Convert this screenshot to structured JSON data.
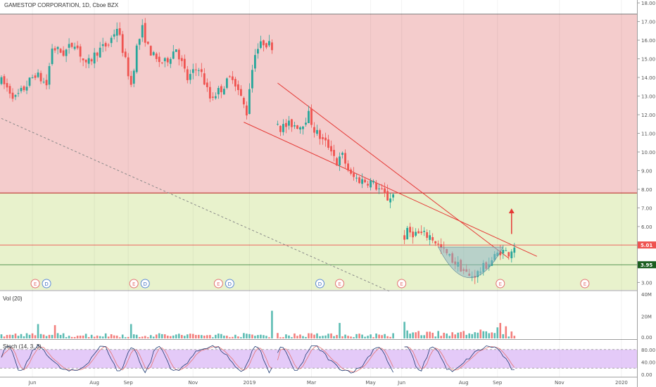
{
  "header": {
    "title": "GAMESTOP CORPORATION, 1D, Cboe BZX"
  },
  "panes": {
    "volume_label": "Vol (20)",
    "stoch_label": "Stoch (14, 3, 3)"
  },
  "colors": {
    "up": "#26a69a",
    "down": "#ef5350",
    "red_zone": "#f4cccc",
    "green_zone": "#e8f2cc",
    "trendline": "#e53935",
    "stoch_band": "#d9b3f5",
    "last_price_badge": "#ef5350",
    "support_badge": "#1b5e20"
  },
  "chart_data": [
    {
      "type": "candlestick",
      "title": "GAMESTOP CORPORATION, 1D, Cboe BZX",
      "ylim": [
        2.6,
        18.0
      ],
      "y_ticks": [
        "18.00",
        "17.00",
        "16.00",
        "15.00",
        "14.00",
        "13.00",
        "12.00",
        "11.00",
        "10.00",
        "9.00",
        "8.00",
        "7.00",
        "6.00",
        "5.00",
        "4.00",
        "3.00"
      ],
      "x_ticks": [
        "Jun",
        "Aug",
        "Sep",
        "Nov",
        "2019",
        "Mar",
        "May",
        "Jun",
        "Aug",
        "Sep",
        "Nov",
        "2020"
      ],
      "x_tick_index": [
        11,
        33,
        45,
        68,
        88,
        110,
        131,
        142,
        164,
        176,
        198,
        220
      ],
      "price_labels": [
        {
          "text": "5.01",
          "value": 5.01,
          "color": "#ef5350"
        },
        {
          "text": "3.95",
          "value": 3.95,
          "color": "#1b5e20"
        }
      ],
      "zones": [
        {
          "name": "red",
          "from": 7.8,
          "to": 17.4
        },
        {
          "name": "green",
          "from": 2.6,
          "to": 7.8
        }
      ],
      "horizontal_lines": [
        5.01,
        3.95
      ],
      "trendlines": [
        {
          "from": [
            98,
            13.7
          ],
          "to": [
            180,
            4.3
          ]
        },
        {
          "from": [
            86,
            11.6
          ],
          "to": [
            190,
            4.4
          ]
        },
        {
          "from": [
            0,
            11.8
          ],
          "to": [
            138,
            2.5
          ],
          "style": "dashed"
        }
      ],
      "arrow": {
        "x": 181,
        "from": 5.6,
        "to": 6.9
      },
      "events": [
        {
          "x": 12,
          "label": "E",
          "kind": "earnings"
        },
        {
          "x": 16,
          "label": "D",
          "kind": "dividend"
        },
        {
          "x": 47,
          "label": "E",
          "kind": "earnings"
        },
        {
          "x": 51,
          "label": "D",
          "kind": "dividend"
        },
        {
          "x": 77,
          "label": "E",
          "kind": "earnings"
        },
        {
          "x": 81,
          "label": "D",
          "kind": "dividend"
        },
        {
          "x": 113,
          "label": "D",
          "kind": "dividend"
        },
        {
          "x": 120,
          "label": "E",
          "kind": "earnings"
        },
        {
          "x": 142,
          "label": "E",
          "kind": "earnings"
        },
        {
          "x": 177,
          "label": "E",
          "kind": "earnings"
        },
        {
          "x": 207,
          "label": "E",
          "kind": "earnings"
        }
      ],
      "anchors": [
        [
          0,
          13.8
        ],
        [
          5,
          12.9
        ],
        [
          8,
          13.4
        ],
        [
          12,
          14.2
        ],
        [
          16,
          13.6
        ],
        [
          18,
          15.6
        ],
        [
          22,
          15.3
        ],
        [
          26,
          15.9
        ],
        [
          30,
          14.6
        ],
        [
          34,
          15.4
        ],
        [
          38,
          15.8
        ],
        [
          41,
          16.7
        ],
        [
          43,
          15.5
        ],
        [
          46,
          13.6
        ],
        [
          48,
          15.6
        ],
        [
          50,
          16.6
        ],
        [
          52,
          15.6
        ],
        [
          55,
          14.9
        ],
        [
          58,
          14.8
        ],
        [
          62,
          15.6
        ],
        [
          66,
          13.9
        ],
        [
          70,
          14.6
        ],
        [
          74,
          12.9
        ],
        [
          78,
          13.4
        ],
        [
          82,
          14.1
        ],
        [
          85,
          12.9
        ],
        [
          87,
          12.1
        ],
        [
          88,
          13.5
        ],
        [
          90,
          15.4
        ],
        [
          93,
          15.9
        ],
        [
          96,
          15.7
        ],
        [
          97,
          11.9
        ],
        [
          99,
          11.3
        ],
        [
          103,
          11.5
        ],
        [
          106,
          11.4
        ],
        [
          109,
          12.0
        ],
        [
          111,
          11.2
        ],
        [
          114,
          10.6
        ],
        [
          117,
          10.2
        ],
        [
          119,
          9.4
        ],
        [
          121,
          9.8
        ],
        [
          124,
          8.7
        ],
        [
          127,
          8.5
        ],
        [
          131,
          8.4
        ],
        [
          134,
          8.0
        ],
        [
          137,
          7.5
        ],
        [
          139,
          7.7
        ],
        [
          142,
          5.2
        ],
        [
          144,
          5.7
        ],
        [
          148,
          5.6
        ],
        [
          152,
          5.5
        ],
        [
          154,
          5.2
        ],
        [
          156,
          4.8
        ],
        [
          160,
          4.2
        ],
        [
          163,
          3.8
        ],
        [
          166,
          3.3
        ],
        [
          169,
          3.5
        ],
        [
          171,
          3.8
        ],
        [
          174,
          4.2
        ],
        [
          177,
          4.7
        ],
        [
          180,
          4.6
        ],
        [
          182,
          5.0
        ]
      ],
      "gaps": [
        [
          96,
          97
        ],
        [
          139,
          142
        ]
      ]
    },
    {
      "type": "bar",
      "title": "Vol (20)",
      "ylim": [
        0,
        40
      ],
      "y_ticks": [
        "40M",
        "20M",
        "0.00"
      ],
      "spikes": [
        [
          13,
          13
        ],
        [
          19,
          12
        ],
        [
          46,
          13
        ],
        [
          96,
          25
        ],
        [
          120,
          14
        ],
        [
          142,
          30
        ],
        [
          143,
          15
        ],
        [
          177,
          14
        ],
        [
          176,
          10
        ],
        [
          179,
          11
        ],
        [
          170,
          8
        ]
      ]
    },
    {
      "type": "line",
      "title": "Stoch (14, 3, 3)",
      "ylim": [
        0,
        100
      ],
      "y_ticks": [
        "80.00",
        "40.00",
        "0.00"
      ],
      "band": [
        20,
        80
      ]
    }
  ]
}
